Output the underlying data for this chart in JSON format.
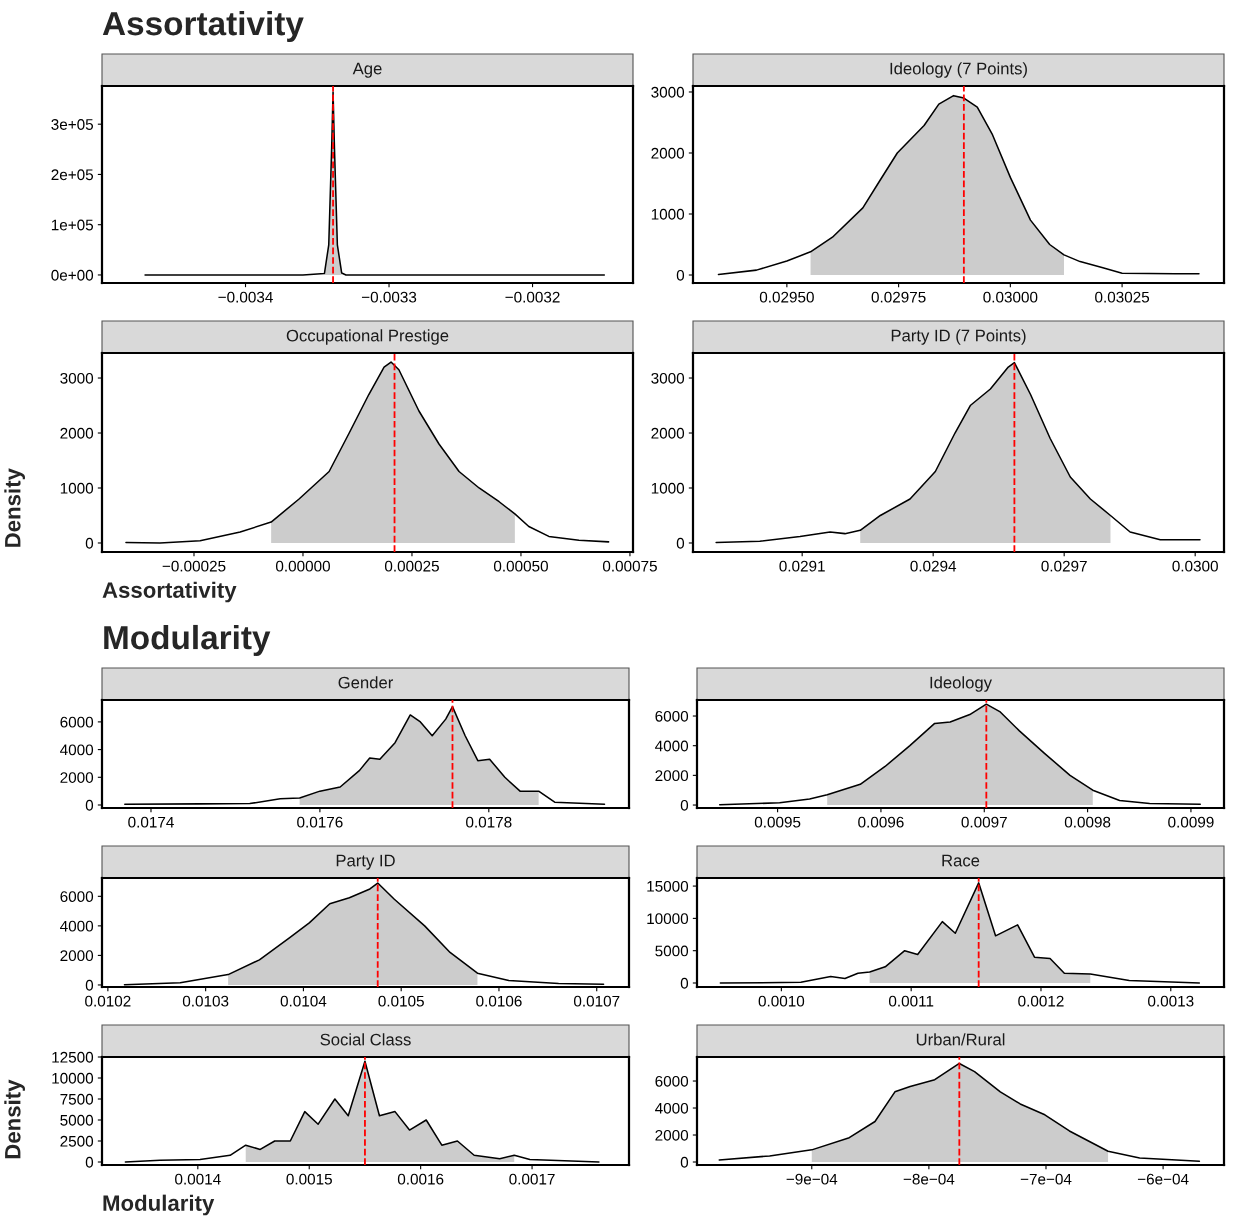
{
  "chart_data": [
    {
      "type": "line",
      "title": "Age",
      "annotations": [
        "Assortativity"
      ],
      "xlim": [
        -0.0035,
        -0.00313
      ],
      "xticks": [
        {
          "value": -0.0034,
          "label": "−0.0034"
        },
        {
          "value": -0.0033,
          "label": "−0.0033"
        },
        {
          "value": -0.0032,
          "label": "−0.0032"
        }
      ],
      "ylim": [
        -16000,
        376000
      ],
      "yticks": [
        {
          "value": 0,
          "label": "0e+00"
        },
        {
          "value": 100000,
          "label": "1e+05"
        },
        {
          "value": 200000,
          "label": "2e+05"
        },
        {
          "value": 300000,
          "label": "3e+05"
        }
      ],
      "ref_lines": [
        {
          "axis": "x",
          "value": -0.003339,
          "color": "#ff0000",
          "line_style": "dashed"
        }
      ],
      "series": [
        {
          "type": "area",
          "color": "#cccccc",
          "x": [
            -0.003345,
            -0.003342,
            -0.00334,
            -0.003339,
            -0.003338,
            -0.003336,
            -0.003333
          ],
          "values": [
            3000,
            60000,
            250000,
            364000,
            250000,
            60000,
            4000
          ]
        },
        {
          "color": "#000000",
          "x": [
            -0.00347,
            -0.00336,
            -0.003345,
            -0.003342,
            -0.00334,
            -0.003339,
            -0.003338,
            -0.003336,
            -0.003333,
            -0.00333,
            -0.00315
          ],
          "values": [
            0,
            0,
            3000,
            60000,
            250000,
            364000,
            250000,
            60000,
            4000,
            0,
            0
          ]
        }
      ]
    },
    {
      "type": "line",
      "title": "Ideology (7 Points)",
      "xlim": [
        0.02929,
        0.030478
      ],
      "xticks": [
        {
          "value": 0.0295,
          "label": "0.02950"
        },
        {
          "value": 0.02975,
          "label": "0.02975"
        },
        {
          "value": 0.03,
          "label": "0.03000"
        },
        {
          "value": 0.03025,
          "label": "0.03025"
        }
      ],
      "ylim": [
        -131,
        3098
      ],
      "yticks": [
        0,
        1000,
        2000,
        3000
      ],
      "ref_lines": [
        {
          "axis": "x",
          "value": 0.029896,
          "color": "#ff0000",
          "line_style": "dashed"
        }
      ],
      "series": [
        {
          "type": "area",
          "color": "#cccccc",
          "x": [
            0.029553,
            0.029602,
            0.02967,
            0.029704,
            0.029747,
            0.029807,
            0.02984,
            0.029873,
            0.029896,
            0.029926,
            0.02996,
            0.03,
            0.030045,
            0.030088,
            0.03012
          ],
          "values": [
            380,
            620,
            1100,
            1500,
            2000,
            2450,
            2800,
            2940,
            2900,
            2750,
            2300,
            1600,
            900,
            500,
            330
          ]
        },
        {
          "color": "#000000",
          "x": [
            0.029347,
            0.029432,
            0.0295,
            0.029553,
            0.029602,
            0.02967,
            0.029704,
            0.029747,
            0.029807,
            0.02984,
            0.029873,
            0.029896,
            0.029926,
            0.02996,
            0.03,
            0.030045,
            0.030088,
            0.03012,
            0.030156,
            0.030207,
            0.03025,
            0.030369,
            0.030422
          ],
          "values": [
            10,
            80,
            230,
            380,
            620,
            1100,
            1500,
            2000,
            2450,
            2800,
            2940,
            2900,
            2750,
            2300,
            1600,
            900,
            500,
            330,
            220,
            120,
            30,
            20,
            20
          ]
        }
      ]
    },
    {
      "type": "line",
      "title": "Occupational Prestige",
      "xlabel": "Assortativity",
      "ylabel": "Density",
      "xlim": [
        -0.000461,
        0.000757
      ],
      "xticks": [
        {
          "value": -0.00025,
          "label": "−0.00025"
        },
        {
          "value": 0,
          "label": "0.00000"
        },
        {
          "value": 0.00025,
          "label": "0.00025"
        },
        {
          "value": 0.0005,
          "label": "0.00050"
        },
        {
          "value": 0.00075,
          "label": "0.00075"
        }
      ],
      "ylim": [
        -164,
        3455
      ],
      "yticks": [
        0,
        1000,
        2000,
        3000
      ],
      "ref_lines": [
        {
          "axis": "x",
          "value": 0.00021,
          "color": "#ff0000",
          "line_style": "dashed"
        }
      ],
      "series": [
        {
          "type": "area",
          "color": "#cccccc",
          "x": [
            -7.3e-05,
            -9e-06,
            6e-05,
            0.000106,
            0.000151,
            0.000186,
            0.000202,
            0.00022,
            0.000266,
            0.000312,
            0.000358,
            0.000404,
            0.00045,
            0.000486
          ],
          "values": [
            380,
            800,
            1300,
            2000,
            2700,
            3200,
            3290,
            3150,
            2400,
            1800,
            1300,
            1000,
            750,
            530
          ]
        },
        {
          "color": "#000000",
          "x": [
            -0.000406,
            -0.000328,
            -0.000236,
            -0.000144,
            -7.3e-05,
            -9e-06,
            6e-05,
            0.000106,
            0.000151,
            0.000186,
            0.000202,
            0.00022,
            0.000266,
            0.000312,
            0.000358,
            0.000404,
            0.00045,
            0.000486,
            0.000518,
            0.000564,
            0.000633,
            0.000701
          ],
          "values": [
            10,
            0,
            40,
            200,
            380,
            800,
            1300,
            2000,
            2700,
            3200,
            3290,
            3150,
            2400,
            1800,
            1300,
            1000,
            750,
            530,
            300,
            120,
            50,
            20
          ]
        }
      ]
    },
    {
      "type": "line",
      "title": "Party ID (7 Points)",
      "xlim": [
        0.02885,
        0.030066
      ],
      "xticks": [
        {
          "value": 0.0291,
          "label": "0.0291"
        },
        {
          "value": 0.0294,
          "label": "0.0294"
        },
        {
          "value": 0.0297,
          "label": "0.0297"
        },
        {
          "value": 0.03,
          "label": "0.0300"
        }
      ],
      "ylim": [
        -164,
        3455
      ],
      "yticks": [
        0,
        1000,
        2000,
        3000
      ],
      "ref_lines": [
        {
          "axis": "x",
          "value": 0.029586,
          "color": "#ff0000",
          "line_style": "dashed"
        }
      ],
      "series": [
        {
          "type": "area",
          "color": "#cccccc",
          "x": [
            0.029233,
            0.029279,
            0.029347,
            0.029405,
            0.02945,
            0.029485,
            0.029531,
            0.029572,
            0.029586,
            0.029623,
            0.029668,
            0.029714,
            0.02976,
            0.029806
          ],
          "values": [
            230,
            500,
            800,
            1300,
            2000,
            2500,
            2800,
            3200,
            3280,
            2700,
            1900,
            1200,
            800,
            500
          ]
        },
        {
          "color": "#000000",
          "x": [
            0.028903,
            0.029003,
            0.029095,
            0.029164,
            0.029198,
            0.029233,
            0.029279,
            0.029347,
            0.029405,
            0.02945,
            0.029485,
            0.029531,
            0.029572,
            0.029586,
            0.029623,
            0.029668,
            0.029714,
            0.02976,
            0.029806,
            0.029851,
            0.02992,
            0.030011
          ],
          "values": [
            10,
            30,
            120,
            200,
            170,
            230,
            500,
            800,
            1300,
            2000,
            2500,
            2800,
            3200,
            3280,
            2700,
            1900,
            1200,
            800,
            500,
            200,
            60,
            60
          ]
        }
      ]
    },
    {
      "type": "line",
      "title": "Gender",
      "annotations": [
        "Modularity"
      ],
      "xlim": [
        0.017342,
        0.017966
      ],
      "xticks": [
        0.0174,
        0.0176,
        0.0178
      ],
      "ylim": [
        -217,
        7580
      ],
      "yticks": [
        0,
        2000,
        4000,
        6000
      ],
      "ref_lines": [
        {
          "axis": "x",
          "value": 0.017757,
          "color": "#ff0000",
          "line_style": "dashed"
        }
      ],
      "series": [
        {
          "type": "area",
          "color": "#cccccc",
          "x": [
            0.017576,
            0.0176,
            0.017624,
            0.017647,
            0.017659,
            0.017671,
            0.017689,
            0.017707,
            0.017719,
            0.017733,
            0.017749,
            0.017757,
            0.017772,
            0.017787,
            0.017801,
            0.017819,
            0.017837,
            0.017859
          ],
          "values": [
            500,
            1000,
            1300,
            2500,
            3400,
            3300,
            4500,
            6500,
            6000,
            5000,
            6200,
            7100,
            5000,
            3200,
            3300,
            2000,
            1000,
            1000
          ]
        },
        {
          "color": "#000000",
          "x": [
            0.017369,
            0.017458,
            0.017517,
            0.017553,
            0.017576,
            0.0176,
            0.017624,
            0.017647,
            0.017659,
            0.017671,
            0.017689,
            0.017707,
            0.017719,
            0.017733,
            0.017749,
            0.017757,
            0.017772,
            0.017787,
            0.017801,
            0.017819,
            0.017837,
            0.017859,
            0.017878,
            0.017937
          ],
          "values": [
            50,
            80,
            100,
            450,
            500,
            1000,
            1300,
            2500,
            3400,
            3300,
            4500,
            6500,
            6000,
            5000,
            6200,
            7100,
            5000,
            3200,
            3300,
            2000,
            1000,
            1000,
            200,
            50
          ]
        }
      ]
    },
    {
      "type": "line",
      "title": "Ideology",
      "xlim": [
        0.009422,
        0.009932
      ],
      "xticks": [
        0.0095,
        0.0096,
        0.0097,
        0.0098,
        0.0099
      ],
      "ylim": [
        -200,
        7080
      ],
      "yticks": [
        0,
        2000,
        4000,
        6000
      ],
      "ref_lines": [
        {
          "axis": "x",
          "value": 0.009702,
          "color": "#ff0000",
          "line_style": "dashed"
        }
      ],
      "series": [
        {
          "type": "area",
          "color": "#cccccc",
          "x": [
            0.009548,
            0.00958,
            0.009604,
            0.009628,
            0.009652,
            0.009667,
            0.009686,
            0.009702,
            0.009715,
            0.009734,
            0.009758,
            0.009783,
            0.009805
          ],
          "values": [
            700,
            1400,
            2600,
            4000,
            5500,
            5600,
            6100,
            6800,
            6300,
            5000,
            3500,
            2000,
            1000
          ]
        },
        {
          "color": "#000000",
          "x": [
            0.009444,
            0.009502,
            0.009531,
            0.009548,
            0.00958,
            0.009604,
            0.009628,
            0.009652,
            0.009667,
            0.009686,
            0.009702,
            0.009715,
            0.009734,
            0.009758,
            0.009783,
            0.009805,
            0.009831,
            0.00986,
            0.009909
          ],
          "values": [
            20,
            150,
            400,
            700,
            1400,
            2600,
            4000,
            5500,
            5600,
            6100,
            6800,
            6300,
            5000,
            3500,
            2000,
            1000,
            300,
            100,
            50
          ]
        }
      ]
    },
    {
      "type": "line",
      "title": "Party ID",
      "xlim": [
        0.010194,
        0.010733
      ],
      "xticks": [
        0.0102,
        0.0103,
        0.0104,
        0.0105,
        0.0106,
        0.0107
      ],
      "ylim": [
        -138,
        7240
      ],
      "yticks": [
        0,
        2000,
        4000,
        6000
      ],
      "ref_lines": [
        {
          "axis": "x",
          "value": 0.010476,
          "color": "#ff0000",
          "line_style": "dashed"
        }
      ],
      "series": [
        {
          "type": "area",
          "color": "#cccccc",
          "x": [
            0.010323,
            0.010355,
            0.010386,
            0.010406,
            0.010427,
            0.010447,
            0.010468,
            0.010476,
            0.010493,
            0.010524,
            0.01055,
            0.010578
          ],
          "values": [
            700,
            1700,
            3200,
            4200,
            5500,
            5900,
            6500,
            6900,
            5800,
            4000,
            2200,
            800
          ]
        },
        {
          "color": "#000000",
          "x": [
            0.010217,
            0.010274,
            0.010323,
            0.010355,
            0.010386,
            0.010406,
            0.010427,
            0.010447,
            0.010468,
            0.010476,
            0.010493,
            0.010524,
            0.01055,
            0.010578,
            0.01061,
            0.010661,
            0.010707
          ],
          "values": [
            20,
            150,
            700,
            1700,
            3200,
            4200,
            5500,
            5900,
            6500,
            6900,
            5800,
            4000,
            2200,
            800,
            300,
            100,
            50
          ]
        }
      ]
    },
    {
      "type": "line",
      "title": "Race",
      "xlim": [
        0.000935,
        0.001341
      ],
      "xticks": [
        {
          "value": 0.001,
          "label": "0.0010"
        },
        0.0011,
        0.0012,
        0.0013
      ],
      "ylim": [
        -620,
        16250
      ],
      "yticks": [
        0,
        5000,
        10000,
        15000
      ],
      "ref_lines": [
        {
          "axis": "x",
          "value": 0.001152,
          "color": "#ff0000",
          "line_style": "dashed"
        }
      ],
      "series": [
        {
          "type": "area",
          "color": "#cccccc",
          "x": [
            0.001068,
            0.00108,
            0.001095,
            0.001105,
            0.001124,
            0.001134,
            0.001152,
            0.001165,
            0.001182,
            0.001195,
            0.001207,
            0.001218,
            0.001238
          ],
          "values": [
            1700,
            2500,
            5000,
            4400,
            9500,
            7700,
            15500,
            7300,
            9000,
            4000,
            3800,
            1500,
            1400
          ]
        },
        {
          "color": "#000000",
          "x": [
            0.000953,
            0.001015,
            0.001038,
            0.001049,
            0.001059,
            0.001068,
            0.00108,
            0.001095,
            0.001105,
            0.001124,
            0.001134,
            0.001152,
            0.001165,
            0.001182,
            0.001195,
            0.001207,
            0.001218,
            0.001238,
            0.001268,
            0.001322
          ],
          "values": [
            0,
            100,
            1000,
            700,
            1500,
            1700,
            2500,
            5000,
            4400,
            9500,
            7700,
            15500,
            7300,
            9000,
            4000,
            3800,
            1500,
            1400,
            400,
            0
          ]
        }
      ]
    },
    {
      "type": "line",
      "title": "Social Class",
      "xlabel": "Modularity",
      "ylabel": "Density",
      "xlim": [
        0.001314,
        0.001787
      ],
      "xticks": [
        0.0014,
        0.0015,
        0.0016,
        0.0017
      ],
      "ylim": [
        -357,
        12500
      ],
      "yticks": [
        0,
        2500,
        5000,
        7500,
        10000,
        12500
      ],
      "ref_lines": [
        {
          "axis": "x",
          "value": 0.00155,
          "color": "#ff0000",
          "line_style": "dashed"
        }
      ],
      "series": [
        {
          "type": "area",
          "color": "#cccccc",
          "x": [
            0.001443,
            0.001456,
            0.001469,
            0.001483,
            0.001496,
            0.001508,
            0.001523,
            0.001535,
            0.00155,
            0.001563,
            0.001577,
            0.00159,
            0.001605,
            0.001619,
            0.001633,
            0.001648,
            0.001671,
            0.001684
          ],
          "values": [
            2000,
            1500,
            2500,
            2500,
            6000,
            4500,
            7500,
            5500,
            12000,
            5500,
            6000,
            3800,
            5000,
            2000,
            2500,
            800,
            400,
            800
          ]
        },
        {
          "color": "#000000",
          "x": [
            0.001335,
            0.001366,
            0.001402,
            0.001429,
            0.001443,
            0.001456,
            0.001469,
            0.001483,
            0.001496,
            0.001508,
            0.001523,
            0.001535,
            0.00155,
            0.001563,
            0.001577,
            0.00159,
            0.001605,
            0.001619,
            0.001633,
            0.001648,
            0.001671,
            0.001684,
            0.001698,
            0.00176
          ],
          "values": [
            0,
            200,
            300,
            800,
            2000,
            1500,
            2500,
            2500,
            6000,
            4500,
            7500,
            5500,
            12000,
            5500,
            6000,
            3800,
            5000,
            2000,
            2500,
            800,
            400,
            800,
            300,
            0
          ]
        }
      ]
    },
    {
      "type": "line",
      "title": "Urban/Rural",
      "xlim": [
        -0.000998,
        -0.000548
      ],
      "xticks": [
        {
          "value": -0.0009,
          "label": "−9e−04"
        },
        {
          "value": -0.0008,
          "label": "−8e−04"
        },
        {
          "value": -0.0007,
          "label": "−7e−04"
        },
        {
          "value": -0.0006,
          "label": "−6e−04"
        }
      ],
      "ylim": [
        -222,
        7780
      ],
      "yticks": [
        0,
        2000,
        4000,
        6000
      ],
      "ref_lines": [
        {
          "axis": "x",
          "value": -0.000774,
          "color": "#ff0000",
          "line_style": "dashed"
        }
      ],
      "series": [
        {
          "type": "area",
          "color": "#cccccc",
          "x": [
            -0.0009,
            -0.000868,
            -0.000846,
            -0.000829,
            -0.000816,
            -0.000795,
            -0.000774,
            -0.000761,
            -0.000739,
            -0.000722,
            -0.000701,
            -0.00068,
            -0.000647
          ],
          "values": [
            900,
            1800,
            3000,
            5200,
            5600,
            6100,
            7300,
            6700,
            5200,
            4300,
            3500,
            2300,
            800
          ]
        },
        {
          "color": "#000000",
          "x": [
            -0.000979,
            -0.000936,
            -0.0009,
            -0.000868,
            -0.000846,
            -0.000829,
            -0.000816,
            -0.000795,
            -0.000774,
            -0.000761,
            -0.000739,
            -0.000722,
            -0.000701,
            -0.00068,
            -0.000647,
            -0.00062,
            -0.000569
          ],
          "values": [
            150,
            450,
            900,
            1800,
            3000,
            5200,
            5600,
            6100,
            7300,
            6700,
            5200,
            4300,
            3500,
            2300,
            800,
            300,
            50
          ]
        }
      ]
    }
  ]
}
